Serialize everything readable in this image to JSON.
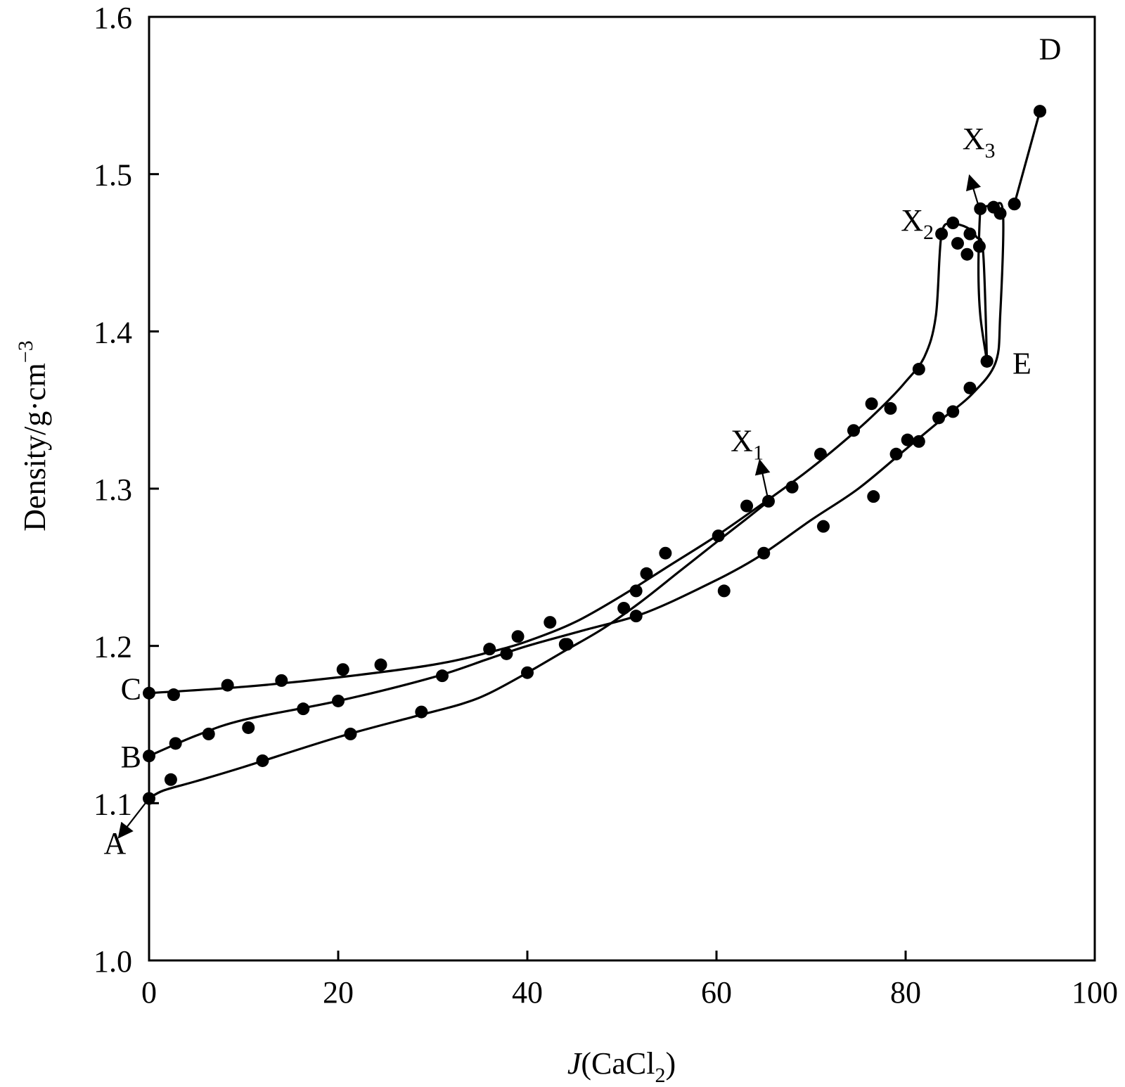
{
  "chart_data": {
    "type": "scatter",
    "title": "",
    "xlabel": {
      "italic": "J",
      "main": "(CaCl",
      "sub": "2",
      "close": ")"
    },
    "ylabel": {
      "main": "Density/g·cm",
      "sup": "−3"
    },
    "xlim": [
      0,
      100
    ],
    "ylim": [
      1.0,
      1.6
    ],
    "xticks": [
      0,
      20,
      40,
      60,
      80,
      100
    ],
    "yticks": [
      1.0,
      1.1,
      1.2,
      1.3,
      1.4,
      1.5,
      1.6
    ],
    "ytick_labels": [
      "1.0",
      "1.1",
      "1.2",
      "1.3",
      "1.4",
      "1.5",
      "1.6"
    ],
    "xtick_labels": [
      "0",
      "20",
      "40",
      "60",
      "80",
      "100"
    ],
    "grid": false,
    "series": [
      {
        "points": [
          [
            0,
            1.17
          ],
          [
            2.6,
            1.169
          ],
          [
            8.3,
            1.175
          ],
          [
            14,
            1.178
          ],
          [
            20.5,
            1.185
          ],
          [
            24.5,
            1.188
          ],
          [
            36,
            1.198
          ],
          [
            39,
            1.206
          ],
          [
            42.4,
            1.215
          ],
          [
            52.6,
            1.246
          ],
          [
            54.6,
            1.259
          ],
          [
            60.2,
            1.27
          ],
          [
            63.2,
            1.289
          ],
          [
            68,
            1.301
          ],
          [
            71,
            1.322
          ],
          [
            74.5,
            1.337
          ],
          [
            76.4,
            1.354
          ],
          [
            78.4,
            1.351
          ],
          [
            81.4,
            1.376
          ],
          [
            83.8,
            1.462
          ],
          [
            85,
            1.469
          ],
          [
            85.5,
            1.456
          ],
          [
            86.5,
            1.449
          ],
          [
            86.8,
            1.462
          ],
          [
            87.8,
            1.454
          ],
          [
            88.6,
            1.381
          ]
        ],
        "curve": [
          [
            0,
            1.17
          ],
          [
            10,
            1.174
          ],
          [
            20,
            1.18
          ],
          [
            30,
            1.188
          ],
          [
            36,
            1.196
          ],
          [
            40,
            1.203
          ],
          [
            45,
            1.215
          ],
          [
            50,
            1.232
          ],
          [
            55,
            1.251
          ],
          [
            60,
            1.27
          ],
          [
            65,
            1.291
          ],
          [
            70,
            1.313
          ],
          [
            75,
            1.338
          ],
          [
            78,
            1.355
          ],
          [
            80,
            1.368
          ],
          [
            82,
            1.384
          ],
          [
            83.2,
            1.41
          ],
          [
            83.8,
            1.462
          ],
          [
            85,
            1.468
          ],
          [
            86.5,
            1.466
          ],
          [
            87.5,
            1.46
          ],
          [
            88.2,
            1.45
          ],
          [
            88.6,
            1.381
          ]
        ]
      },
      {
        "points": [
          [
            0,
            1.13
          ],
          [
            2.8,
            1.138
          ],
          [
            6.3,
            1.144
          ],
          [
            10.5,
            1.148
          ],
          [
            16.3,
            1.16
          ],
          [
            20,
            1.165
          ],
          [
            31,
            1.181
          ],
          [
            37.8,
            1.195
          ],
          [
            44,
            1.201
          ],
          [
            50.2,
            1.224
          ],
          [
            51.5,
            1.235
          ],
          [
            60.8,
            1.235
          ],
          [
            65,
            1.259
          ],
          [
            71.3,
            1.276
          ],
          [
            76.6,
            1.295
          ],
          [
            79,
            1.322
          ],
          [
            80.2,
            1.331
          ],
          [
            81.4,
            1.33
          ],
          [
            83.5,
            1.345
          ],
          [
            85,
            1.349
          ],
          [
            86.8,
            1.364
          ],
          [
            88.6,
            1.381
          ],
          [
            87.9,
            1.478
          ],
          [
            89.3,
            1.479
          ],
          [
            90,
            1.475
          ],
          [
            91.5,
            1.481
          ],
          [
            94.2,
            1.54
          ]
        ],
        "curve": [
          [
            0,
            1.13
          ],
          [
            5,
            1.143
          ],
          [
            10,
            1.153
          ],
          [
            20,
            1.165
          ],
          [
            30,
            1.18
          ],
          [
            36,
            1.192
          ],
          [
            40,
            1.2
          ],
          [
            46,
            1.21
          ],
          [
            52,
            1.22
          ],
          [
            58,
            1.236
          ],
          [
            64,
            1.255
          ],
          [
            70,
            1.28
          ],
          [
            75,
            1.3
          ],
          [
            80,
            1.325
          ],
          [
            84,
            1.345
          ],
          [
            87,
            1.36
          ],
          [
            89.5,
            1.38
          ],
          [
            90,
            1.41
          ],
          [
            90.3,
            1.475
          ],
          [
            89.3,
            1.48
          ],
          [
            88.2,
            1.479
          ],
          [
            87.9,
            1.478
          ],
          [
            87.7,
            1.44
          ],
          [
            87.9,
            1.41
          ],
          [
            88.6,
            1.381
          ]
        ]
      },
      {
        "points": [
          [
            0,
            1.103
          ],
          [
            2.3,
            1.115
          ],
          [
            12,
            1.127
          ],
          [
            21.3,
            1.144
          ],
          [
            28.8,
            1.158
          ],
          [
            40,
            1.183
          ],
          [
            44.2,
            1.201
          ],
          [
            51.5,
            1.219
          ],
          [
            65.5,
            1.292
          ],
          [
            91.5,
            1.481
          ],
          [
            94.2,
            1.54
          ]
        ],
        "curve": [
          [
            0,
            1.103
          ],
          [
            1.5,
            1.108
          ],
          [
            5,
            1.114
          ],
          [
            10,
            1.123
          ],
          [
            20,
            1.142
          ],
          [
            28,
            1.155
          ],
          [
            33,
            1.163
          ],
          [
            36,
            1.17
          ],
          [
            40,
            1.183
          ],
          [
            44,
            1.197
          ],
          [
            48,
            1.211
          ],
          [
            52,
            1.228
          ],
          [
            56,
            1.247
          ],
          [
            60,
            1.266
          ],
          [
            63,
            1.28
          ],
          [
            65.5,
            1.292
          ]
        ],
        "tail": [
          [
            91.5,
            1.481
          ],
          [
            94.2,
            1.54
          ]
        ]
      }
    ],
    "annotations": [
      {
        "text": "A",
        "x": -4.8,
        "y": 1.068
      },
      {
        "text": "B",
        "x": -3.0,
        "y": 1.123
      },
      {
        "text": "C",
        "x": -3.0,
        "y": 1.166
      },
      {
        "text": "D",
        "x": 94.1,
        "y": 1.573
      },
      {
        "text": "E",
        "x": 91.3,
        "y": 1.373
      },
      {
        "text": "X",
        "sub": "1",
        "x": 61.5,
        "y": 1.324
      },
      {
        "text": "X",
        "sub": "2",
        "x": 79.5,
        "y": 1.464
      },
      {
        "text": "X",
        "sub": "3",
        "x": 86.0,
        "y": 1.516
      }
    ],
    "arrows": [
      {
        "from": [
          0,
          1.103
        ],
        "to": [
          -3.1,
          1.079
        ]
      },
      {
        "from": [
          65.5,
          1.292
        ],
        "to": [
          64.6,
          1.317
        ]
      },
      {
        "from": [
          87.8,
          1.478
        ],
        "to": [
          86.8,
          1.498
        ]
      }
    ]
  }
}
